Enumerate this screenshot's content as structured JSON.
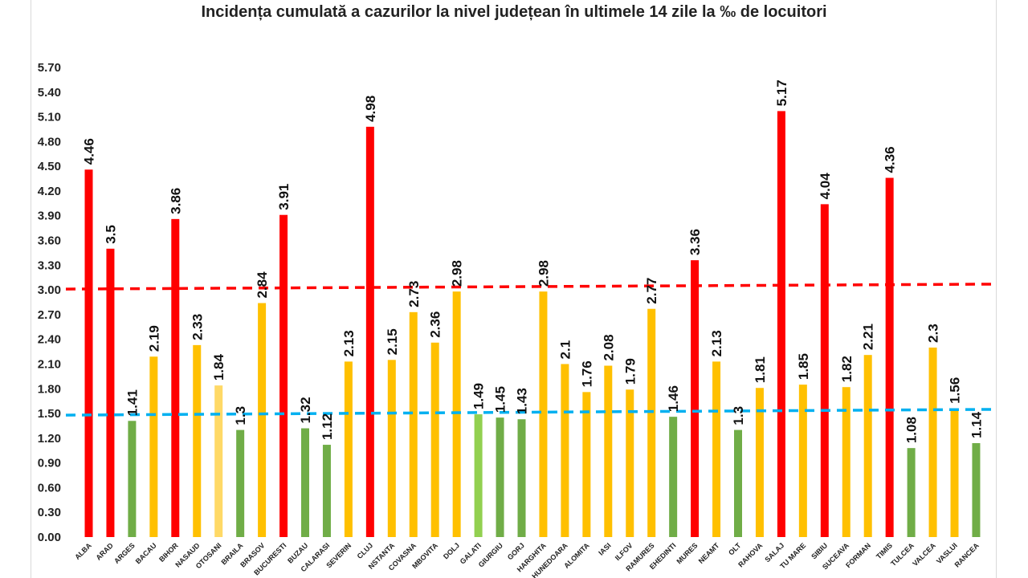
{
  "chart_data": {
    "type": "bar",
    "title": "Incidența cumulată a cazurilor la nivel județean în ultimele 14 zile la ‰ de locuitori",
    "xlabel": "",
    "ylabel": "",
    "ylim": [
      0,
      5.7
    ],
    "ytick_step": 0.3,
    "yticks": [
      "0.00",
      "0.30",
      "0.60",
      "0.90",
      "1.20",
      "1.50",
      "1.80",
      "2.10",
      "2.40",
      "2.70",
      "3.00",
      "3.30",
      "3.60",
      "3.90",
      "4.20",
      "4.50",
      "4.80",
      "5.10",
      "5.40",
      "5.70"
    ],
    "categories": [
      "ALBA",
      "ARAD",
      "ARGES",
      "BACAU",
      "BIHOR",
      "NASAUD",
      "OTOSANI",
      "BRAILA",
      "BRASOV",
      "BUCURESTI",
      "BUZAU",
      "CALARASI",
      "SEVERIN",
      "CLUJ",
      "NSTANTA",
      "COVASNA",
      "MBOVITA",
      "DOLJ",
      "GALATI",
      "GIURGIU",
      "GORJ",
      "HARGHITA",
      "HUNEDOARA",
      "ALOMITA",
      "IASI",
      "ILFOV",
      "RAMURES",
      "EHEDINTI",
      "MURES",
      "NEAMT",
      "OLT",
      "RAHOVA",
      "SALAJ",
      "TU MARE",
      "SIBIU",
      "SUCEAVA",
      "FORMAN",
      "TIMIS",
      "TULCEA",
      "VALCEA",
      "VASLUI",
      "RANCEA"
    ],
    "values": [
      4.46,
      3.5,
      1.41,
      2.19,
      3.86,
      2.33,
      1.84,
      1.3,
      2.84,
      3.91,
      1.32,
      1.12,
      2.13,
      4.98,
      2.15,
      2.73,
      2.36,
      2.98,
      1.49,
      1.45,
      1.43,
      2.98,
      2.1,
      1.76,
      2.08,
      1.79,
      2.77,
      1.46,
      3.36,
      2.13,
      1.3,
      1.81,
      5.17,
      1.85,
      4.04,
      1.82,
      2.21,
      4.36,
      1.08,
      2.3,
      1.56,
      1.14
    ],
    "value_labels": [
      "4.46",
      "3.5",
      "1.41",
      "2.19",
      "3.86",
      "2.33",
      "1.84",
      "1.3",
      "2.84",
      "3.91",
      "1.32",
      "1.12",
      "2.13",
      "4.98",
      "2.15",
      "2.73",
      "2.36",
      "2.98",
      "1.49",
      "1.45",
      "1.43",
      "2.98",
      "2.1",
      "1.76",
      "2.08",
      "1.79",
      "2.77",
      "1.46",
      "3.36",
      "2.13",
      "1.3",
      "1.81",
      "5.17",
      "1.85",
      "4.04",
      "1.82",
      "2.21",
      "4.36",
      "1.08",
      "2.3",
      "1.56",
      "1.14"
    ],
    "bar_colors": [
      "#ff0000",
      "#ff0000",
      "#70ad47",
      "#ffc000",
      "#ff0000",
      "#ffc000",
      "#ffd966",
      "#70ad47",
      "#ffc000",
      "#ff0000",
      "#70ad47",
      "#70ad47",
      "#ffc000",
      "#ff0000",
      "#ffc000",
      "#ffc000",
      "#ffc000",
      "#ffc000",
      "#92d050",
      "#70ad47",
      "#70ad47",
      "#ffc000",
      "#ffc000",
      "#ffc000",
      "#ffc000",
      "#ffc000",
      "#ffc000",
      "#70ad47",
      "#ff0000",
      "#ffc000",
      "#70ad47",
      "#ffc000",
      "#ff0000",
      "#ffc000",
      "#ff0000",
      "#ffc000",
      "#ffc000",
      "#ff0000",
      "#70ad47",
      "#ffc000",
      "#ffc000",
      "#70ad47"
    ],
    "reference_lines": [
      {
        "value_start": 3.01,
        "value_end": 3.07,
        "color": "#ff0000",
        "style": "dashed"
      },
      {
        "value_start": 1.48,
        "value_end": 1.55,
        "color": "#00b0f0",
        "style": "dashed"
      }
    ],
    "grid": false,
    "legend": "none"
  }
}
